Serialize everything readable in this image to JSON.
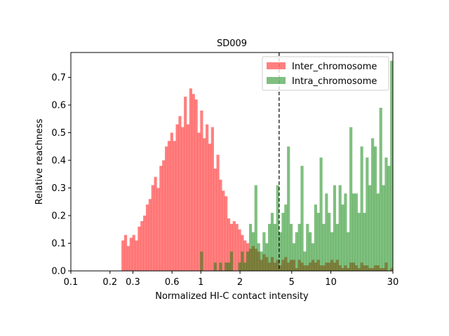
{
  "chart_data": {
    "type": "histogram",
    "title": "SD009",
    "xlabel": "Normalized HI-C contact intensity",
    "ylabel": "Relative reachness",
    "xscale": "log",
    "xlim": [
      0.1,
      30
    ],
    "ylim": [
      0,
      0.79
    ],
    "xticks": [
      {
        "value": 0.1,
        "label": "0.1"
      },
      {
        "value": 0.2,
        "label": "0.2"
      },
      {
        "value": 0.3,
        "label": "0.3"
      },
      {
        "value": 0.6,
        "label": "0.6"
      },
      {
        "value": 1,
        "label": "1"
      },
      {
        "value": 2,
        "label": "2"
      },
      {
        "value": 5,
        "label": "5"
      },
      {
        "value": 10,
        "label": "10"
      },
      {
        "value": 30,
        "label": "30"
      }
    ],
    "yticks": [
      {
        "value": 0.0,
        "label": "0.0"
      },
      {
        "value": 0.1,
        "label": "0.1"
      },
      {
        "value": 0.2,
        "label": "0.2"
      },
      {
        "value": 0.3,
        "label": "0.3"
      },
      {
        "value": 0.4,
        "label": "0.4"
      },
      {
        "value": 0.5,
        "label": "0.5"
      },
      {
        "value": 0.6,
        "label": "0.6"
      },
      {
        "value": 0.7,
        "label": "0.7"
      }
    ],
    "vline": {
      "x": 4.0,
      "style": "dashed",
      "color": "#000000"
    },
    "legend": {
      "position": "upper-right"
    },
    "bin_edges": [
      0.245,
      30
    ],
    "series": [
      {
        "name": "Inter_chromosome",
        "color": "#ff0000",
        "alpha": 0.5,
        "values": [
          0.11,
          0.13,
          0.09,
          0.12,
          0.13,
          0.11,
          0.16,
          0.18,
          0.2,
          0.24,
          0.26,
          0.31,
          0.34,
          0.3,
          0.38,
          0.4,
          0.45,
          0.47,
          0.5,
          0.47,
          0.53,
          0.56,
          0.52,
          0.63,
          0.53,
          0.66,
          0.64,
          0.62,
          0.5,
          0.58,
          0.48,
          0.53,
          0.46,
          0.52,
          0.37,
          0.42,
          0.33,
          0.29,
          0.27,
          0.19,
          0.17,
          0.18,
          0.17,
          0.15,
          0.13,
          0.11,
          0.1,
          0.08,
          0.09,
          0.08,
          0.07,
          0.04,
          0.06,
          0.05,
          0.03,
          0.05,
          0.03,
          0.04,
          0.02,
          0.04,
          0.05,
          0.03,
          0.04,
          0.04,
          0.01,
          0.04,
          0.03,
          0.02,
          0.02,
          0.03,
          0.04,
          0.03,
          0.04,
          0.02,
          0.02,
          0.03,
          0.03,
          0.04,
          0.03,
          0.04,
          0.02,
          0.01,
          0.02,
          0.01,
          0.03,
          0.03,
          0.02,
          0.01,
          0.03,
          0.02,
          0.02,
          0.01,
          0.01,
          0.02,
          0.02,
          0.01,
          0.01,
          0.03,
          0.0,
          0.01
        ]
      },
      {
        "name": "Intra_chromosome",
        "color": "#008000",
        "alpha": 0.5,
        "values": [
          0,
          0,
          0,
          0,
          0,
          0,
          0,
          0,
          0,
          0,
          0,
          0,
          0,
          0,
          0,
          0,
          0,
          0,
          0,
          0,
          0,
          0,
          0,
          0,
          0,
          0,
          0,
          0,
          0,
          0.07,
          0,
          0,
          0,
          0,
          0.03,
          0,
          0.03,
          0,
          0.03,
          0.03,
          0.07,
          0,
          0,
          0.03,
          0.07,
          0.03,
          0.07,
          0.17,
          0.14,
          0.31,
          0.1,
          0.07,
          0.14,
          0.1,
          0.17,
          0.21,
          0.17,
          0.31,
          0.14,
          0.21,
          0.24,
          0.45,
          0.17,
          0.1,
          0.14,
          0.17,
          0.38,
          0.07,
          0.17,
          0.14,
          0.1,
          0.24,
          0.21,
          0.41,
          0.17,
          0.28,
          0.21,
          0.14,
          0.31,
          0.17,
          0.31,
          0.24,
          0.28,
          0.14,
          0.52,
          0.28,
          0.28,
          0.21,
          0.45,
          0.21,
          0.41,
          0.31,
          0.48,
          0.45,
          0.28,
          0.59,
          0.31,
          0.41,
          0.38,
          0.76
        ]
      }
    ]
  }
}
